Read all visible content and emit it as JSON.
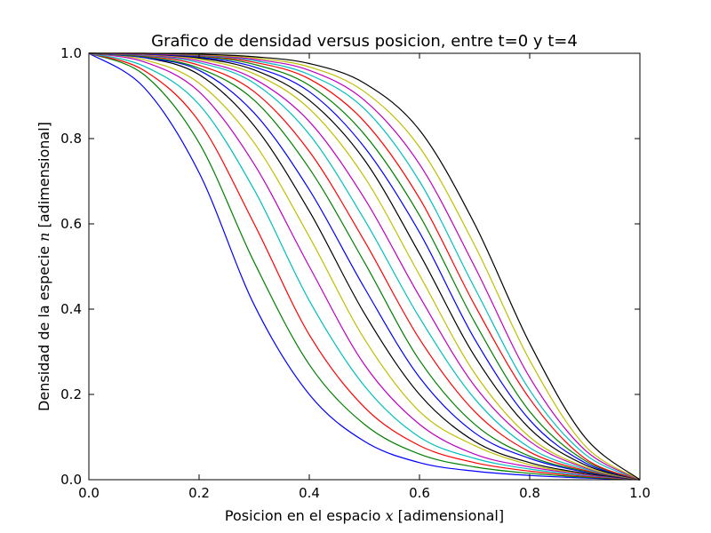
{
  "chart_data": {
    "type": "line",
    "title": "Grafico de densidad versus posicion, entre t=0 y t=4",
    "xlabel_parts": [
      "Posicion en el espacio ",
      "x",
      " [adimensional]"
    ],
    "ylabel_parts": [
      "Densidad de la especie ",
      "n",
      " [adimensional]"
    ],
    "xlim": [
      0.0,
      1.0
    ],
    "ylim": [
      0.0,
      1.0
    ],
    "xticks": [
      "0.0",
      "0.2",
      "0.4",
      "0.6",
      "0.8",
      "1.0"
    ],
    "yticks": [
      "0.0",
      "0.2",
      "0.4",
      "0.6",
      "0.8",
      "1.0"
    ],
    "grid": false,
    "legend": "none",
    "series": [
      {
        "color": "#0000ff",
        "x": [
          0,
          0.1,
          0.2,
          0.3,
          0.4,
          0.5,
          0.6,
          0.7,
          0.8,
          0.9,
          1.0
        ],
        "y": [
          1.0,
          0.92,
          0.72,
          0.41,
          0.2,
          0.09,
          0.04,
          0.02,
          0.01,
          0.004,
          0.0
        ]
      },
      {
        "color": "#008000",
        "x": [
          0,
          0.1,
          0.2,
          0.3,
          0.4,
          0.5,
          0.6,
          0.7,
          0.8,
          0.9,
          1.0
        ],
        "y": [
          1.0,
          0.95,
          0.79,
          0.51,
          0.27,
          0.13,
          0.06,
          0.03,
          0.015,
          0.006,
          0.0
        ]
      },
      {
        "color": "#ff0000",
        "x": [
          0,
          0.1,
          0.2,
          0.3,
          0.4,
          0.5,
          0.6,
          0.7,
          0.8,
          0.9,
          1.0
        ],
        "y": [
          1.0,
          0.96,
          0.84,
          0.6,
          0.34,
          0.17,
          0.08,
          0.04,
          0.02,
          0.008,
          0.0
        ]
      },
      {
        "color": "#00bfbf",
        "x": [
          0,
          0.1,
          0.2,
          0.3,
          0.4,
          0.5,
          0.6,
          0.7,
          0.8,
          0.9,
          1.0
        ],
        "y": [
          1.0,
          0.97,
          0.88,
          0.68,
          0.42,
          0.22,
          0.1,
          0.05,
          0.025,
          0.01,
          0.0
        ]
      },
      {
        "color": "#bf00bf",
        "x": [
          0,
          0.1,
          0.2,
          0.3,
          0.4,
          0.5,
          0.6,
          0.7,
          0.8,
          0.9,
          1.0
        ],
        "y": [
          1.0,
          0.98,
          0.91,
          0.74,
          0.5,
          0.27,
          0.13,
          0.06,
          0.03,
          0.012,
          0.0
        ]
      },
      {
        "color": "#bfbf00",
        "x": [
          0,
          0.1,
          0.2,
          0.3,
          0.4,
          0.5,
          0.6,
          0.7,
          0.8,
          0.9,
          1.0
        ],
        "y": [
          1.0,
          0.985,
          0.93,
          0.79,
          0.57,
          0.33,
          0.16,
          0.08,
          0.035,
          0.014,
          0.0
        ]
      },
      {
        "color": "#000000",
        "x": [
          0,
          0.1,
          0.2,
          0.3,
          0.4,
          0.5,
          0.6,
          0.7,
          0.8,
          0.9,
          1.0
        ],
        "y": [
          1.0,
          0.99,
          0.95,
          0.83,
          0.63,
          0.39,
          0.2,
          0.09,
          0.04,
          0.015,
          0.0
        ]
      },
      {
        "color": "#0000ff",
        "x": [
          0,
          0.1,
          0.2,
          0.3,
          0.4,
          0.5,
          0.6,
          0.7,
          0.8,
          0.9,
          1.0
        ],
        "y": [
          1.0,
          0.99,
          0.96,
          0.86,
          0.68,
          0.45,
          0.24,
          0.11,
          0.05,
          0.018,
          0.0
        ]
      },
      {
        "color": "#008000",
        "x": [
          0,
          0.1,
          0.2,
          0.3,
          0.4,
          0.5,
          0.6,
          0.7,
          0.8,
          0.9,
          1.0
        ],
        "y": [
          1.0,
          0.992,
          0.965,
          0.89,
          0.73,
          0.51,
          0.28,
          0.13,
          0.055,
          0.02,
          0.0
        ]
      },
      {
        "color": "#ff0000",
        "x": [
          0,
          0.1,
          0.2,
          0.3,
          0.4,
          0.5,
          0.6,
          0.7,
          0.8,
          0.9,
          1.0
        ],
        "y": [
          1.0,
          0.994,
          0.972,
          0.91,
          0.77,
          0.56,
          0.33,
          0.16,
          0.065,
          0.022,
          0.0
        ]
      },
      {
        "color": "#00bfbf",
        "x": [
          0,
          0.1,
          0.2,
          0.3,
          0.4,
          0.5,
          0.6,
          0.7,
          0.8,
          0.9,
          1.0
        ],
        "y": [
          1.0,
          0.995,
          0.978,
          0.93,
          0.81,
          0.61,
          0.38,
          0.19,
          0.075,
          0.025,
          0.0
        ]
      },
      {
        "color": "#bf00bf",
        "x": [
          0,
          0.1,
          0.2,
          0.3,
          0.4,
          0.5,
          0.6,
          0.7,
          0.8,
          0.9,
          1.0
        ],
        "y": [
          1.0,
          0.996,
          0.982,
          0.94,
          0.84,
          0.66,
          0.43,
          0.22,
          0.09,
          0.028,
          0.0
        ]
      },
      {
        "color": "#bfbf00",
        "x": [
          0,
          0.1,
          0.2,
          0.3,
          0.4,
          0.5,
          0.6,
          0.7,
          0.8,
          0.9,
          1.0
        ],
        "y": [
          1.0,
          0.997,
          0.986,
          0.952,
          0.87,
          0.71,
          0.48,
          0.25,
          0.1,
          0.03,
          0.0
        ]
      },
      {
        "color": "#000000",
        "x": [
          0,
          0.1,
          0.2,
          0.3,
          0.4,
          0.5,
          0.6,
          0.7,
          0.8,
          0.9,
          1.0
        ],
        "y": [
          1.0,
          0.998,
          0.989,
          0.961,
          0.89,
          0.75,
          0.53,
          0.29,
          0.12,
          0.035,
          0.0
        ]
      },
      {
        "color": "#0000ff",
        "x": [
          0,
          0.1,
          0.2,
          0.3,
          0.4,
          0.5,
          0.6,
          0.7,
          0.8,
          0.9,
          1.0
        ],
        "y": [
          1.0,
          0.998,
          0.991,
          0.968,
          0.91,
          0.78,
          0.58,
          0.33,
          0.14,
          0.04,
          0.0
        ]
      },
      {
        "color": "#008000",
        "x": [
          0,
          0.1,
          0.2,
          0.3,
          0.4,
          0.5,
          0.6,
          0.7,
          0.8,
          0.9,
          1.0
        ],
        "y": [
          1.0,
          0.999,
          0.993,
          0.974,
          0.925,
          0.81,
          0.62,
          0.37,
          0.16,
          0.045,
          0.0
        ]
      },
      {
        "color": "#ff0000",
        "x": [
          0,
          0.1,
          0.2,
          0.3,
          0.4,
          0.5,
          0.6,
          0.7,
          0.8,
          0.9,
          1.0
        ],
        "y": [
          1.0,
          0.999,
          0.994,
          0.979,
          0.94,
          0.84,
          0.66,
          0.41,
          0.19,
          0.05,
          0.0
        ]
      },
      {
        "color": "#00bfbf",
        "x": [
          0,
          0.1,
          0.2,
          0.3,
          0.4,
          0.5,
          0.6,
          0.7,
          0.8,
          0.9,
          1.0
        ],
        "y": [
          1.0,
          0.999,
          0.995,
          0.983,
          0.95,
          0.87,
          0.7,
          0.45,
          0.21,
          0.06,
          0.0
        ]
      },
      {
        "color": "#bf00bf",
        "x": [
          0,
          0.1,
          0.2,
          0.3,
          0.4,
          0.5,
          0.6,
          0.7,
          0.8,
          0.9,
          1.0
        ],
        "y": [
          1.0,
          0.999,
          0.996,
          0.986,
          0.96,
          0.89,
          0.74,
          0.5,
          0.24,
          0.07,
          0.0
        ]
      },
      {
        "color": "#bfbf00",
        "x": [
          0,
          0.1,
          0.2,
          0.3,
          0.4,
          0.5,
          0.6,
          0.7,
          0.8,
          0.9,
          1.0
        ],
        "y": [
          1.0,
          1.0,
          0.997,
          0.989,
          0.968,
          0.91,
          0.78,
          0.55,
          0.28,
          0.08,
          0.0
        ]
      },
      {
        "color": "#000000",
        "x": [
          0,
          0.1,
          0.2,
          0.3,
          0.4,
          0.5,
          0.6,
          0.7,
          0.8,
          0.9,
          1.0
        ],
        "y": [
          1.0,
          1.0,
          0.998,
          0.992,
          0.976,
          0.93,
          0.82,
          0.6,
          0.32,
          0.1,
          0.0
        ]
      }
    ]
  }
}
